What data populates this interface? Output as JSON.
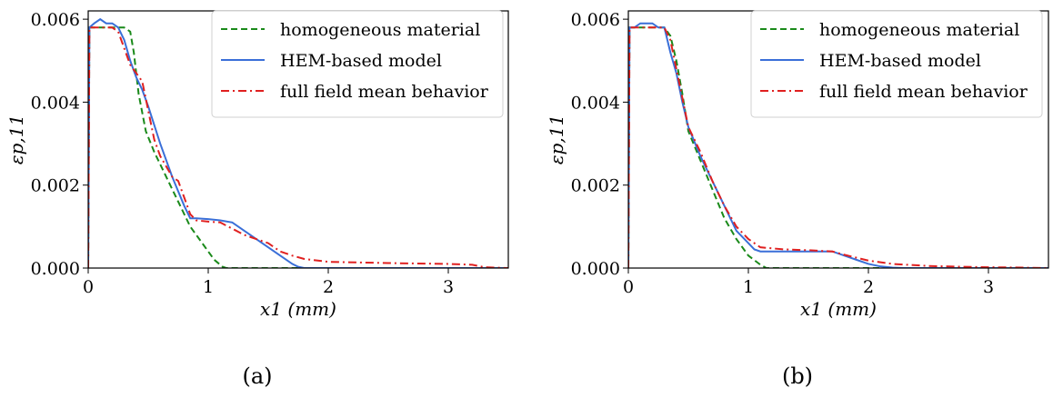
{
  "chart_data": [
    {
      "type": "line",
      "panel_label": "(a)",
      "xlabel": "x1 (mm)",
      "ylabel": "εp,11",
      "xlim": [
        0,
        3.5
      ],
      "ylim": [
        0,
        0.0062
      ],
      "xticks": [
        0,
        1,
        2,
        3
      ],
      "xtick_labels": [
        "0",
        "1",
        "2",
        "3"
      ],
      "yticks": [
        0,
        0.002,
        0.004,
        0.006
      ],
      "ytick_labels": [
        "0.000",
        "0.002",
        "0.004",
        "0.006"
      ],
      "grid": false,
      "legend_position": "top-right",
      "series": [
        {
          "name": "homogeneous material",
          "color": "#1a8a1a",
          "dash": "dashed",
          "x": [
            0,
            0.01,
            0.05,
            0.2,
            0.3,
            0.35,
            0.38,
            0.42,
            0.48,
            0.55,
            0.65,
            0.75,
            0.85,
            0.95,
            1.05,
            1.12,
            1.15,
            1.3,
            2,
            3,
            3.5
          ],
          "y": [
            0,
            0.0058,
            0.0058,
            0.0058,
            0.0058,
            0.0057,
            0.0052,
            0.0042,
            0.0033,
            0.0028,
            0.0022,
            0.0016,
            0.001,
            0.0006,
            0.0002,
            3e-05,
            0,
            0,
            0,
            0,
            0
          ]
        },
        {
          "name": "HEM-based model",
          "color": "#3a6fd8",
          "dash": "solid",
          "x": [
            0,
            0.01,
            0.05,
            0.1,
            0.15,
            0.2,
            0.25,
            0.3,
            0.35,
            0.4,
            0.45,
            0.5,
            0.6,
            0.7,
            0.8,
            0.85,
            0.9,
            1.0,
            1.1,
            1.2,
            1.3,
            1.4,
            1.5,
            1.6,
            1.7,
            1.75,
            1.8,
            2,
            3,
            3.5
          ],
          "y": [
            0,
            0.0058,
            0.0059,
            0.006,
            0.0059,
            0.0059,
            0.0058,
            0.0055,
            0.005,
            0.0046,
            0.0043,
            0.0039,
            0.003,
            0.0022,
            0.0015,
            0.0012,
            0.0012,
            0.00118,
            0.00115,
            0.0011,
            0.0009,
            0.0007,
            0.0005,
            0.0003,
            0.0001,
            3e-05,
            0,
            0,
            0,
            0
          ]
        },
        {
          "name": "full field mean behavior",
          "color": "#e02020",
          "dash": "dashdot",
          "x": [
            0,
            0.01,
            0.05,
            0.2,
            0.25,
            0.3,
            0.35,
            0.4,
            0.45,
            0.5,
            0.55,
            0.6,
            0.7,
            0.75,
            0.8,
            0.85,
            0.9,
            1.0,
            1.1,
            1.2,
            1.3,
            1.4,
            1.5,
            1.6,
            1.7,
            1.8,
            2.0,
            2.5,
            3.0,
            3.2,
            3.3,
            3.5
          ],
          "y": [
            0,
            0.0058,
            0.0058,
            0.0058,
            0.0057,
            0.0053,
            0.0049,
            0.0047,
            0.0045,
            0.0038,
            0.0031,
            0.0027,
            0.0022,
            0.0021,
            0.0017,
            0.0013,
            0.00115,
            0.00112,
            0.0011,
            0.00095,
            0.0008,
            0.0007,
            0.0006,
            0.0004,
            0.0003,
            0.00022,
            0.00015,
            0.00012,
            0.0001,
            8e-05,
            2e-05,
            0
          ]
        }
      ]
    },
    {
      "type": "line",
      "panel_label": "(b)",
      "xlabel": "x1 (mm)",
      "ylabel": "εp,11",
      "xlim": [
        0,
        3.5
      ],
      "ylim": [
        0,
        0.0062
      ],
      "xticks": [
        0,
        1,
        2,
        3
      ],
      "xtick_labels": [
        "0",
        "1",
        "2",
        "3"
      ],
      "yticks": [
        0,
        0.002,
        0.004,
        0.006
      ],
      "ytick_labels": [
        "0.000",
        "0.002",
        "0.004",
        "0.006"
      ],
      "grid": false,
      "legend_position": "top-right",
      "series": [
        {
          "name": "homogeneous material",
          "color": "#1a8a1a",
          "dash": "dashed",
          "x": [
            0,
            0.01,
            0.05,
            0.2,
            0.3,
            0.35,
            0.4,
            0.45,
            0.5,
            0.6,
            0.7,
            0.8,
            0.9,
            1.0,
            1.1,
            1.15,
            1.2,
            2,
            3,
            3.5
          ],
          "y": [
            0,
            0.0058,
            0.0058,
            0.0058,
            0.0058,
            0.0056,
            0.005,
            0.0042,
            0.0033,
            0.0026,
            0.0019,
            0.0012,
            0.0007,
            0.0003,
            8e-05,
            0,
            0,
            0,
            0,
            0
          ]
        },
        {
          "name": "HEM-based model",
          "color": "#3a6fd8",
          "dash": "solid",
          "x": [
            0,
            0.01,
            0.05,
            0.1,
            0.15,
            0.2,
            0.25,
            0.3,
            0.35,
            0.4,
            0.45,
            0.5,
            0.6,
            0.7,
            0.8,
            0.9,
            1.0,
            1.05,
            1.1,
            1.3,
            1.5,
            1.7,
            1.8,
            1.9,
            2.0,
            2.1,
            2.2,
            2.3,
            3,
            3.5
          ],
          "y": [
            0,
            0.0058,
            0.0058,
            0.0059,
            0.0059,
            0.0059,
            0.0058,
            0.0058,
            0.0052,
            0.0047,
            0.004,
            0.0034,
            0.0027,
            0.0021,
            0.0015,
            0.0009,
            0.0006,
            0.00045,
            0.0004,
            0.0004,
            0.0004,
            0.0004,
            0.0003,
            0.0002,
            0.0001,
            4e-05,
            1e-05,
            0,
            0,
            0
          ]
        },
        {
          "name": "full field mean behavior",
          "color": "#e02020",
          "dash": "dashdot",
          "x": [
            0,
            0.01,
            0.05,
            0.2,
            0.3,
            0.35,
            0.4,
            0.45,
            0.5,
            0.6,
            0.7,
            0.8,
            0.9,
            1.0,
            1.1,
            1.3,
            1.5,
            1.7,
            1.8,
            1.9,
            2.0,
            2.2,
            2.5,
            2.8,
            3.0,
            3.3,
            3.5
          ],
          "y": [
            0,
            0.0058,
            0.0058,
            0.0058,
            0.0058,
            0.0055,
            0.0048,
            0.0041,
            0.0034,
            0.0028,
            0.0021,
            0.0015,
            0.001,
            0.0007,
            0.0005,
            0.00045,
            0.00043,
            0.0004,
            0.00032,
            0.00025,
            0.00018,
            0.0001,
            5e-05,
            3e-05,
            2e-05,
            1e-05,
            0
          ]
        }
      ]
    }
  ]
}
